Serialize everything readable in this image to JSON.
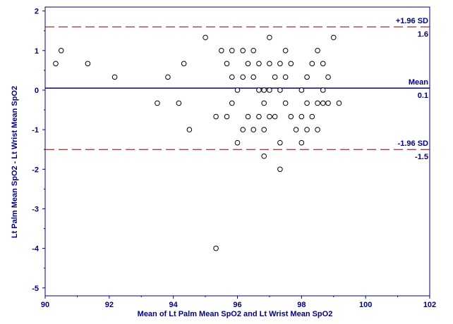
{
  "chart_data": {
    "type": "scatter",
    "title": "",
    "xlabel": "Mean of Lt Palm Mean SpO2 and Lt Wrist Mean SpO2",
    "ylabel": "Lt Palm Mean SpO2 - Lt Wrist Mean SpO2",
    "xlim": [
      90,
      102
    ],
    "ylim": [
      -5.2,
      2.1
    ],
    "x_ticks": [
      90,
      92,
      94,
      96,
      98,
      100,
      102
    ],
    "y_ticks": [
      2,
      1,
      0,
      -1,
      -2,
      -3,
      -4,
      -5
    ],
    "grid": false,
    "reference_lines": [
      {
        "label": "+1.96 SD",
        "value_label": "1.6",
        "y": 1.6,
        "style": "dashed"
      },
      {
        "label": "Mean",
        "value_label": "0.1",
        "y": 0.05,
        "style": "solid"
      },
      {
        "label": "-1.96 SD",
        "value_label": "-1.5",
        "y": -1.5,
        "style": "dashed"
      }
    ],
    "points": [
      {
        "x": 90.33,
        "y": 0.67
      },
      {
        "x": 90.5,
        "y": 1.0
      },
      {
        "x": 91.33,
        "y": 0.67
      },
      {
        "x": 92.17,
        "y": 0.33
      },
      {
        "x": 93.5,
        "y": -0.33
      },
      {
        "x": 93.83,
        "y": 0.33
      },
      {
        "x": 94.17,
        "y": -0.33
      },
      {
        "x": 94.33,
        "y": 0.67
      },
      {
        "x": 94.5,
        "y": -1.0
      },
      {
        "x": 95.0,
        "y": 1.33
      },
      {
        "x": 95.33,
        "y": -0.67
      },
      {
        "x": 95.33,
        "y": -4.0
      },
      {
        "x": 95.5,
        "y": 1.0
      },
      {
        "x": 95.67,
        "y": 0.67
      },
      {
        "x": 95.67,
        "y": -0.67
      },
      {
        "x": 95.83,
        "y": 1.0
      },
      {
        "x": 95.83,
        "y": 0.33
      },
      {
        "x": 95.83,
        "y": -0.33
      },
      {
        "x": 96.0,
        "y": 0.0
      },
      {
        "x": 96.0,
        "y": -1.33
      },
      {
        "x": 96.17,
        "y": 1.0
      },
      {
        "x": 96.17,
        "y": 0.33
      },
      {
        "x": 96.17,
        "y": -1.0
      },
      {
        "x": 96.33,
        "y": 0.67
      },
      {
        "x": 96.33,
        "y": -0.67
      },
      {
        "x": 96.5,
        "y": 1.0
      },
      {
        "x": 96.5,
        "y": 0.33
      },
      {
        "x": 96.5,
        "y": -1.0
      },
      {
        "x": 96.67,
        "y": 0.67
      },
      {
        "x": 96.67,
        "y": 0.0
      },
      {
        "x": 96.67,
        "y": -0.67
      },
      {
        "x": 96.83,
        "y": 0.0
      },
      {
        "x": 96.83,
        "y": -0.33
      },
      {
        "x": 96.83,
        "y": -1.0
      },
      {
        "x": 96.83,
        "y": -1.67
      },
      {
        "x": 97.0,
        "y": 1.33
      },
      {
        "x": 97.0,
        "y": 0.67
      },
      {
        "x": 97.0,
        "y": 0.0
      },
      {
        "x": 97.0,
        "y": -0.67
      },
      {
        "x": 97.17,
        "y": 0.33
      },
      {
        "x": 97.17,
        "y": -0.67
      },
      {
        "x": 97.33,
        "y": 0.67
      },
      {
        "x": 97.33,
        "y": 0.0
      },
      {
        "x": 97.33,
        "y": -1.33
      },
      {
        "x": 97.33,
        "y": -2.0
      },
      {
        "x": 97.5,
        "y": 1.0
      },
      {
        "x": 97.5,
        "y": 0.33
      },
      {
        "x": 97.5,
        "y": -0.33
      },
      {
        "x": 97.67,
        "y": 0.67
      },
      {
        "x": 97.67,
        "y": -0.67
      },
      {
        "x": 97.83,
        "y": -1.0
      },
      {
        "x": 98.0,
        "y": 0.0
      },
      {
        "x": 98.0,
        "y": -0.67
      },
      {
        "x": 98.0,
        "y": -1.33
      },
      {
        "x": 98.17,
        "y": 0.33
      },
      {
        "x": 98.17,
        "y": -0.33
      },
      {
        "x": 98.17,
        "y": -1.0
      },
      {
        "x": 98.33,
        "y": 0.67
      },
      {
        "x": 98.33,
        "y": -0.67
      },
      {
        "x": 98.5,
        "y": 1.0
      },
      {
        "x": 98.5,
        "y": -0.33
      },
      {
        "x": 98.5,
        "y": -1.0
      },
      {
        "x": 98.67,
        "y": 0.67
      },
      {
        "x": 98.67,
        "y": 0.0
      },
      {
        "x": 98.67,
        "y": -0.33
      },
      {
        "x": 98.83,
        "y": 0.33
      },
      {
        "x": 98.83,
        "y": -0.33
      },
      {
        "x": 99.0,
        "y": 1.33
      },
      {
        "x": 99.17,
        "y": -0.33
      }
    ]
  },
  "colors": {
    "axis": "#000080",
    "mean_line": "#000080",
    "sd_line": "#800000",
    "marker": "#000000",
    "background": "#ffffff"
  }
}
